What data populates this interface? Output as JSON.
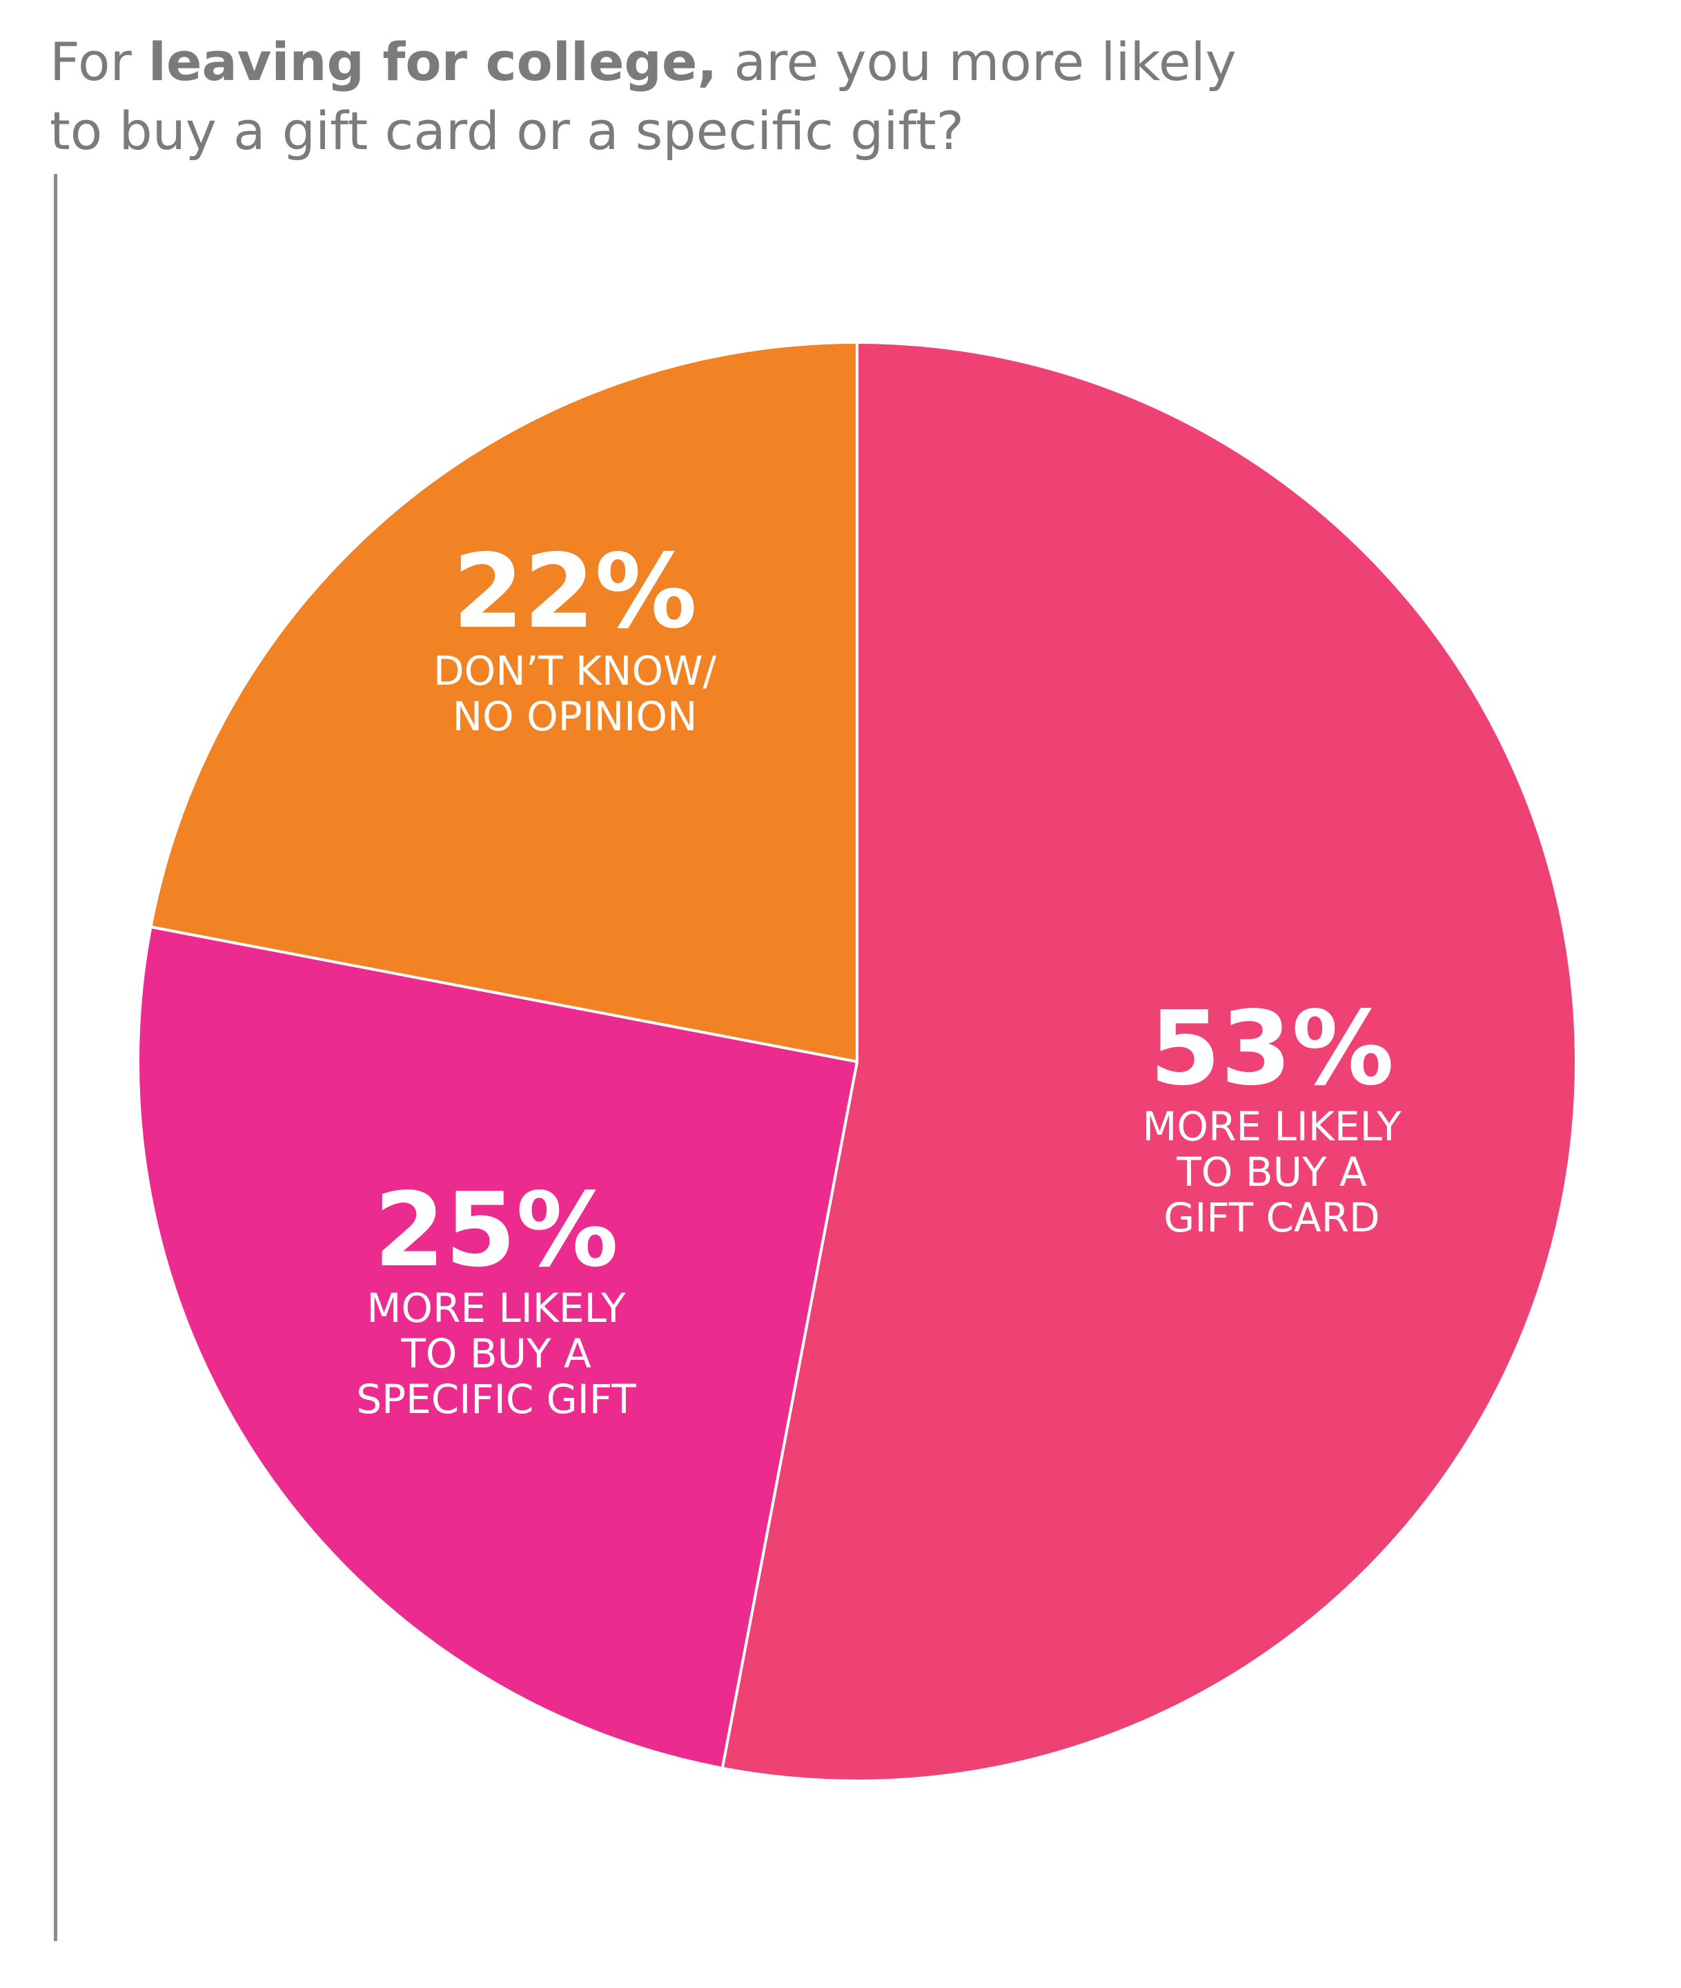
{
  "title": {
    "part1": "For ",
    "bold": "leaving for college,",
    "part2": " are you more likely",
    "line2": "to buy a gift card or a specific gift?"
  },
  "chart_data": {
    "type": "pie",
    "slices": [
      {
        "value_label": "53%",
        "value": 53,
        "label_lines": [
          "MORE LIKELY",
          "TO BUY A",
          "GIFT CARD"
        ],
        "color": "#ee4275"
      },
      {
        "value_label": "25%",
        "value": 25,
        "label_lines": [
          "MORE LIKELY",
          "TO BUY A",
          "SPECIFIC GIFT"
        ],
        "color": "#ec2b8f"
      },
      {
        "value_label": "22%",
        "value": 22,
        "label_lines": [
          "DON’T KNOW/",
          "NO OPINION"
        ],
        "color": "#f28324"
      }
    ],
    "start": "12 o'clock",
    "direction": "clockwise",
    "slice_border_color": "#ffffff"
  }
}
